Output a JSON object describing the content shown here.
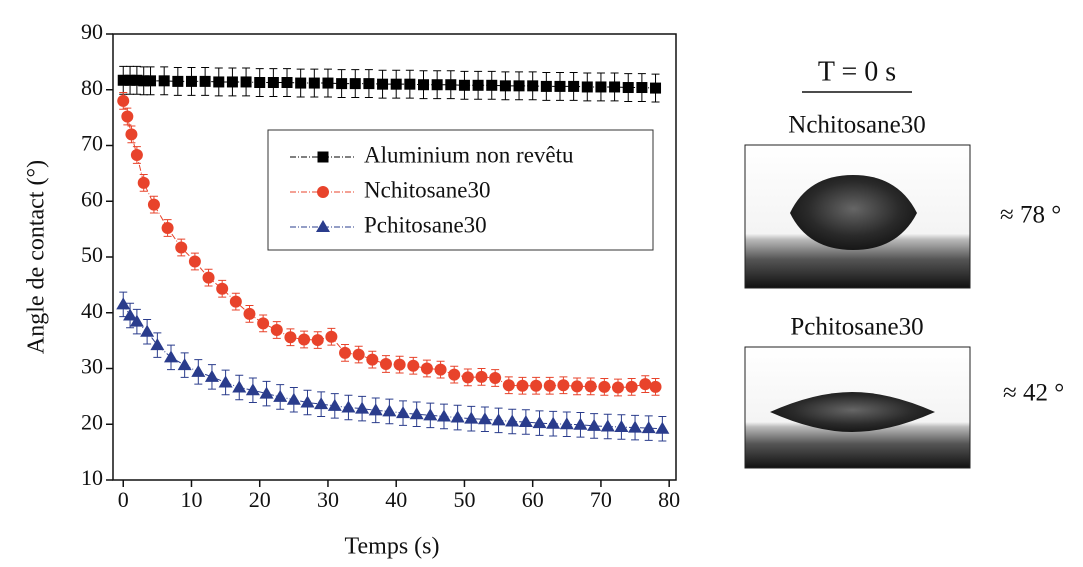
{
  "chart_data": {
    "type": "scatter",
    "xlabel": "Temps (s)",
    "ylabel": "Angle de contact (°)",
    "xlim": [
      -1.5,
      81
    ],
    "ylim": [
      10,
      90
    ],
    "xticks": [
      0,
      10,
      20,
      30,
      40,
      50,
      60,
      70,
      80
    ],
    "yticks": [
      10,
      20,
      30,
      40,
      50,
      60,
      70,
      80,
      90
    ],
    "legend": "top-right",
    "series": [
      {
        "name": "Aluminium non revêtu",
        "color": "#000000",
        "marker": "square",
        "error": 2.5,
        "x": [
          0,
          1,
          2,
          3,
          4,
          6,
          8,
          10,
          12,
          14,
          16,
          18,
          20,
          22,
          24,
          26,
          28,
          30,
          32,
          34,
          36,
          38,
          40,
          42,
          44,
          46,
          48,
          50,
          52,
          54,
          56,
          58,
          60,
          62,
          64,
          66,
          68,
          70,
          72,
          74,
          76,
          78
        ],
        "values": [
          81.7,
          81.7,
          81.7,
          81.6,
          81.6,
          81.6,
          81.5,
          81.5,
          81.5,
          81.4,
          81.4,
          81.4,
          81.3,
          81.3,
          81.3,
          81.2,
          81.2,
          81.2,
          81.1,
          81.1,
          81.1,
          81.0,
          81.0,
          81.0,
          80.9,
          80.9,
          80.9,
          80.8,
          80.8,
          80.8,
          80.7,
          80.7,
          80.7,
          80.6,
          80.6,
          80.6,
          80.5,
          80.5,
          80.5,
          80.4,
          80.4,
          80.3
        ]
      },
      {
        "name": "Nchitosane30",
        "color": "#e8432b",
        "marker": "circle",
        "error": 1.5,
        "x": [
          0,
          0.6,
          1.2,
          2,
          3,
          4.5,
          6.5,
          8.5,
          10.5,
          12.5,
          14.5,
          16.5,
          18.5,
          20.5,
          22.5,
          24.5,
          26.5,
          28.5,
          30.5,
          32.5,
          34.5,
          36.5,
          38.5,
          40.5,
          42.5,
          44.5,
          46.5,
          48.5,
          50.5,
          52.5,
          54.5,
          56.5,
          58.5,
          60.5,
          62.5,
          64.5,
          66.5,
          68.5,
          70.5,
          72.5,
          74.5,
          76.5,
          78
        ],
        "values": [
          78,
          75.2,
          72,
          68.3,
          63.3,
          59.4,
          55.2,
          51.7,
          49.2,
          46.3,
          44.3,
          42,
          39.8,
          38.1,
          36.9,
          35.6,
          35.2,
          35.1,
          35.7,
          32.8,
          32.5,
          31.6,
          30.8,
          30.7,
          30.5,
          30,
          29.8,
          28.9,
          28.4,
          28.5,
          28.3,
          27,
          26.9,
          26.9,
          26.9,
          27,
          26.8,
          26.8,
          26.7,
          26.6,
          26.7,
          27.2,
          26.7
        ]
      },
      {
        "name": "Pchitosane30",
        "color": "#2a3c8c",
        "marker": "triangle",
        "error": 2.2,
        "x": [
          0,
          1,
          2,
          3.5,
          5,
          7,
          9,
          11,
          13,
          15,
          17,
          19,
          21,
          23,
          25,
          27,
          29,
          31,
          33,
          35,
          37,
          39,
          41,
          43,
          45,
          47,
          49,
          51,
          53,
          55,
          57,
          59,
          61,
          63,
          65,
          67,
          69,
          71,
          73,
          75,
          77,
          79
        ],
        "values": [
          41.5,
          39.5,
          38.4,
          36.6,
          34.2,
          32,
          30.6,
          29.4,
          28.5,
          27.5,
          26.6,
          26.1,
          25.5,
          24.9,
          24.4,
          23.9,
          23.6,
          23.3,
          23,
          22.8,
          22.5,
          22.3,
          22,
          21.8,
          21.6,
          21.4,
          21.2,
          21,
          20.9,
          20.7,
          20.5,
          20.4,
          20.2,
          20.1,
          20,
          19.9,
          19.7,
          19.6,
          19.5,
          19.4,
          19.3,
          19.2
        ]
      }
    ]
  },
  "panel": {
    "title": "T = 0 s",
    "images": [
      {
        "label": "Nchitosane30",
        "angle": "≈ 78 °"
      },
      {
        "label": "Pchitosane30",
        "angle": "≈ 42 °"
      }
    ]
  }
}
